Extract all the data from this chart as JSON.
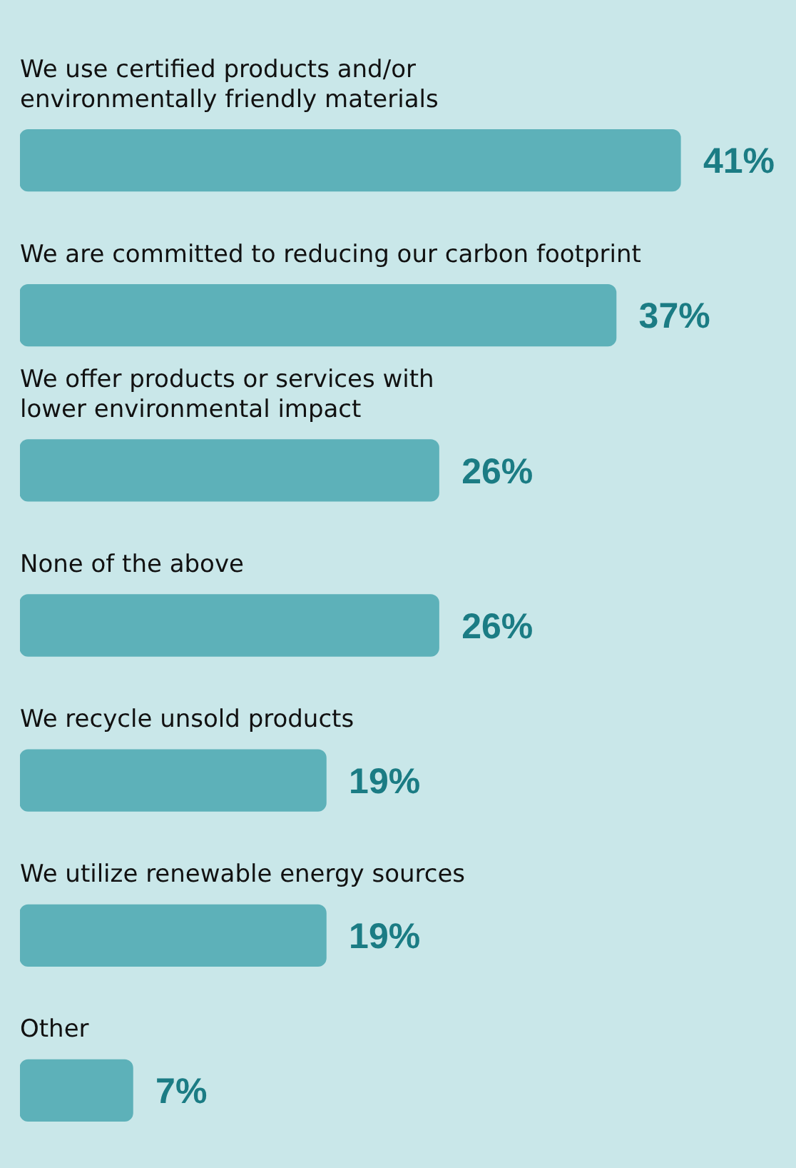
{
  "chart_data": {
    "type": "bar",
    "orientation": "horizontal",
    "categories": [
      "We use certified products and/or\nenvironmentally friendly materials",
      "We are committed to reducing our carbon footprint",
      "We offer products or services with\nlower environmental impact",
      "None of the above",
      "We recycle unsold products",
      "We utilize renewable energy sources",
      "Other"
    ],
    "values": [
      41,
      37,
      26,
      26,
      19,
      19,
      7
    ],
    "value_labels": [
      "41%",
      "37%",
      "26%",
      "26%",
      "19%",
      "19%",
      "7%"
    ],
    "color": "#5db1b9"
  }
}
